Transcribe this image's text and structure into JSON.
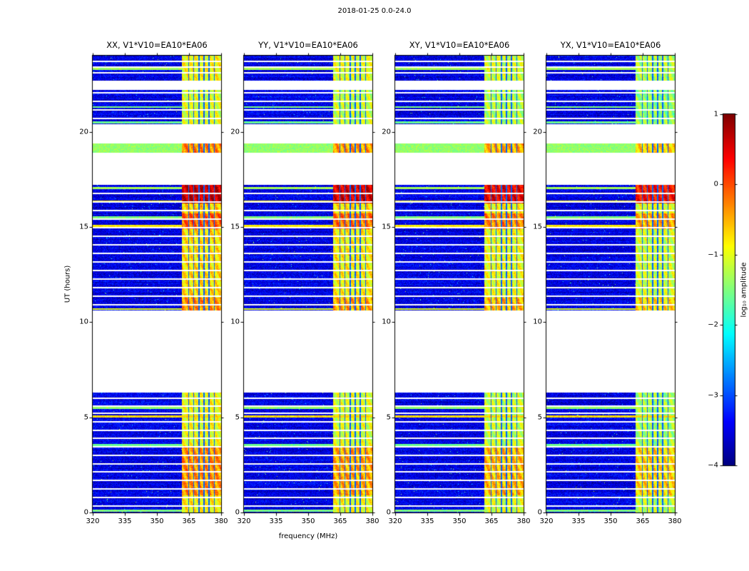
{
  "chart_data": {
    "type": "heatmap",
    "figure_title": "2018-01-25 0.0-24.0",
    "xlabel": "frequency (MHz)",
    "ylabel": "UT (hours)",
    "xlim": [
      320,
      380
    ],
    "ylim": [
      0,
      24
    ],
    "x_tick_values": [
      320,
      335,
      350,
      365,
      380
    ],
    "x_tick_labels": [
      "320",
      "335",
      "350",
      "365",
      "380"
    ],
    "y_tick_values": [
      0,
      5,
      10,
      15,
      20
    ],
    "y_tick_labels": [
      "0",
      "5",
      "10",
      "15",
      "20"
    ],
    "colormap": "jet",
    "panels": [
      {
        "corr": "XX",
        "title": "XX, V1*V10=EA10*EA06",
        "seed": 101,
        "band_offset": 0.15
      },
      {
        "corr": "YY",
        "title": "YY, V1*V10=EA10*EA06",
        "seed": 202,
        "band_offset": 0.05
      },
      {
        "corr": "XY",
        "title": "XY, V1*V10=EA10*EA06",
        "seed": 303,
        "band_offset": -0.05
      },
      {
        "corr": "YX",
        "title": "YX, V1*V10=EA10*EA06",
        "seed": 404,
        "band_offset": -0.2
      }
    ],
    "colorbar": {
      "label": "log₁₀ amplitude",
      "tick_values": [
        1,
        0,
        -1,
        -2,
        -3,
        -4
      ],
      "tick_labels": [
        "1",
        "0",
        "−1",
        "−2",
        "−3",
        "−4"
      ],
      "vmin": -4,
      "vmax": 1
    },
    "background_value": -3.5,
    "noise_amplitude": 0.7,
    "speckle_probability": 0.005,
    "time_segments": [
      [
        0,
        6.3
      ],
      [
        10.6,
        17.2
      ],
      [
        18.9,
        19.4
      ],
      [
        20.4,
        22.2
      ],
      [
        22.7,
        24.0
      ]
    ],
    "gap_rows": [
      0.35,
      0.8,
      1.25,
      1.7,
      2.15,
      2.55,
      3.0,
      3.45,
      3.9,
      4.3,
      4.75,
      5.2,
      5.6,
      6.0,
      10.9,
      11.35,
      11.8,
      12.25,
      12.7,
      13.15,
      13.6,
      14.05,
      14.5,
      14.95,
      15.4,
      15.85,
      16.3,
      16.75,
      20.7,
      21.15,
      21.6,
      22.05,
      23.1,
      23.4,
      23.7
    ],
    "gap_width": 0.08,
    "bright_rows": [
      {
        "t": 0.1,
        "width": 0.09,
        "value": -1.5
      },
      {
        "t": 3.55,
        "width": 0.09,
        "value": -1.6
      },
      {
        "t": 5.05,
        "width": 0.1,
        "value": -0.7
      },
      {
        "t": 5.5,
        "width": 0.09,
        "value": -1.4
      },
      {
        "t": 10.68,
        "width": 0.09,
        "value": -1.0
      },
      {
        "t": 15.05,
        "width": 0.1,
        "value": -0.8
      },
      {
        "t": 15.5,
        "width": 0.09,
        "value": -1.5
      },
      {
        "t": 16.35,
        "width": 0.09,
        "value": -0.8
      },
      {
        "t": 17.05,
        "width": 0.09,
        "value": -1.3
      },
      {
        "t": 19.15,
        "width": 0.5,
        "value": -1.4
      },
      {
        "t": 20.5,
        "width": 0.09,
        "value": -1.6
      },
      {
        "t": 21.3,
        "width": 0.09,
        "value": -1.5
      },
      {
        "t": 23.3,
        "width": 0.09,
        "value": -1.3
      }
    ],
    "rfi_band": {
      "f_start": 361.8,
      "f_end": 380,
      "default_value": -1.3,
      "notches": [
        364.8,
        367.2,
        369.6,
        372.0,
        374.4,
        376.8
      ],
      "notch_width": 0.6,
      "intervals": [
        [
          0.0,
          0.9,
          -1.0
        ],
        [
          0.9,
          3.5,
          -0.5
        ],
        [
          3.5,
          6.3,
          -1.1
        ],
        [
          10.6,
          11.3,
          -0.5
        ],
        [
          11.3,
          14.9,
          -0.9
        ],
        [
          14.9,
          15.7,
          -0.25
        ],
        [
          15.7,
          16.25,
          -0.8
        ],
        [
          16.25,
          17.2,
          0.5
        ],
        [
          18.9,
          19.4,
          -0.45
        ],
        [
          20.4,
          22.2,
          -1.2
        ],
        [
          22.7,
          24.0,
          -1.05
        ]
      ]
    }
  }
}
